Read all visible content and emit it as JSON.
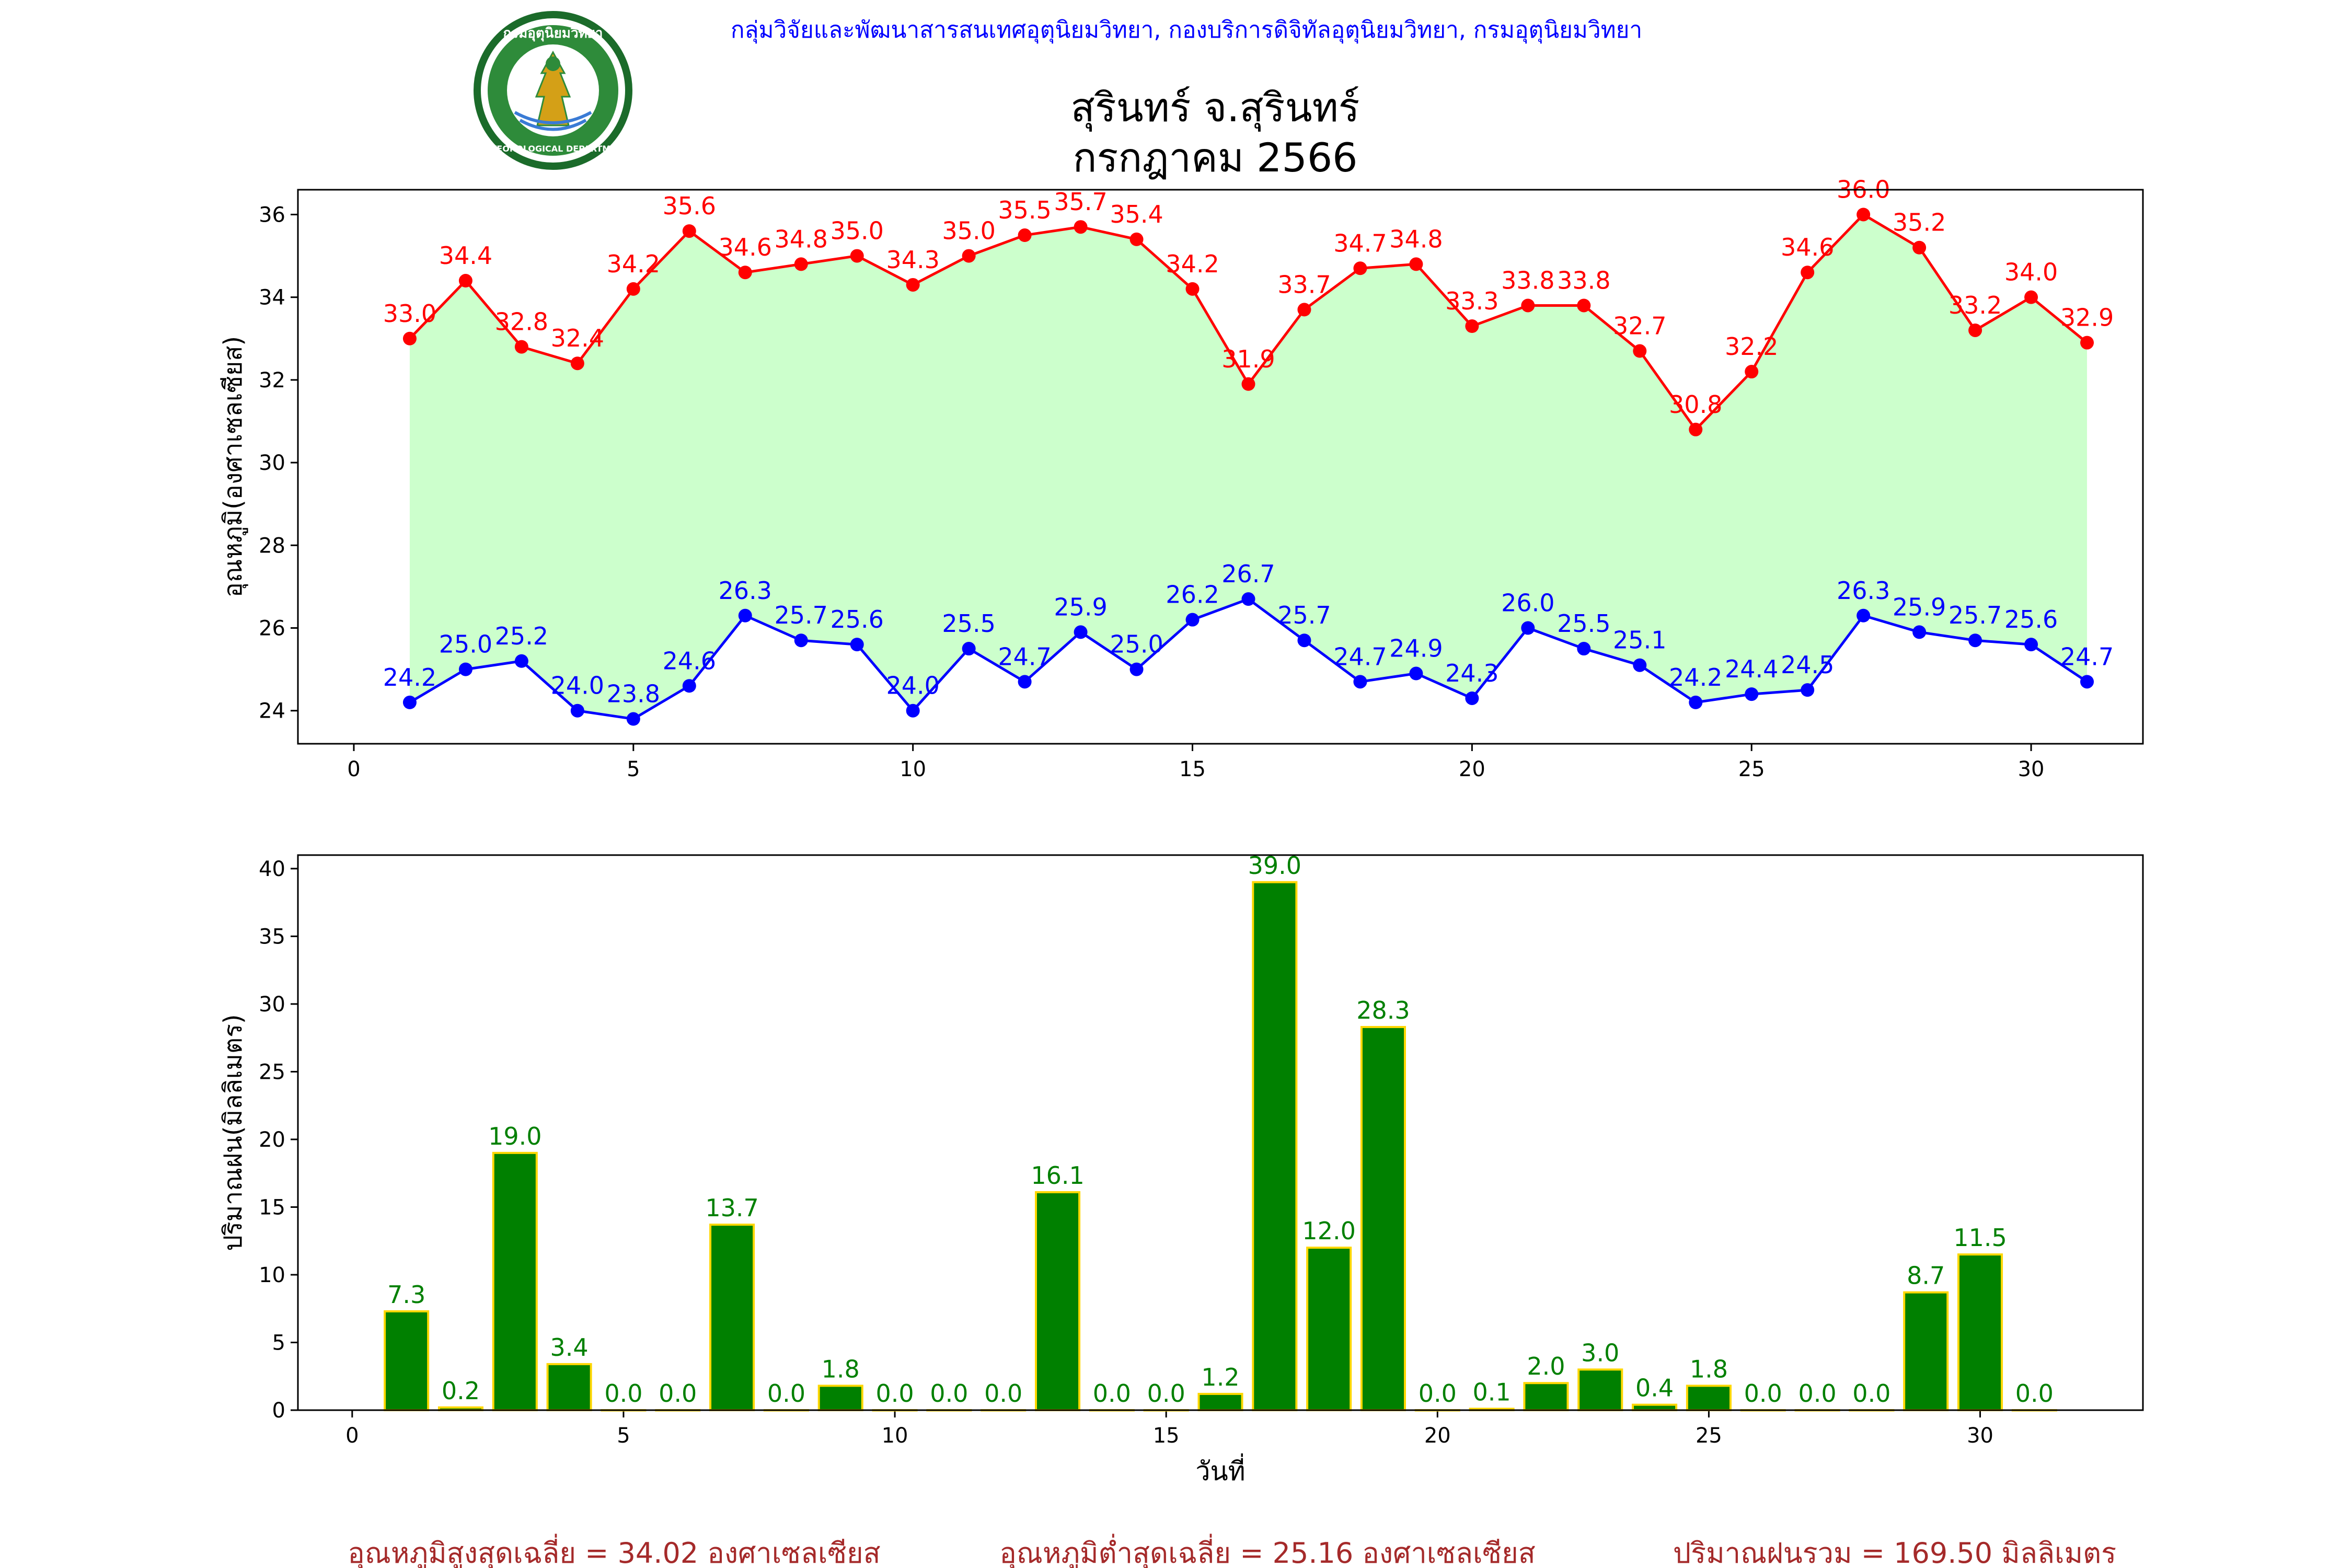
{
  "header": {
    "credit": "กลุ่มวิจัยและพัฒนาสารสนเทศอุตุนิยมวิทยา, กองบริการดิจิทัลอุตุนิยมวิทยา, กรมอุตุนิยมวิทยา",
    "logo_text_top": "กรมอุตุนิยมวิทยา",
    "logo_text_bottom": "METEOROLOGICAL DEPARTMENT",
    "title_line1": "สุรินทร์ จ.สุรินทร์",
    "title_line2": "กรกฎาคม 2566"
  },
  "colors": {
    "credit": "#0000ff",
    "max_line": "#ff0000",
    "min_line": "#0000ff",
    "fill": "#ccffcc",
    "bar_fill": "#008000",
    "bar_edge": "#ffd700",
    "bar_label": "#008000",
    "footer": "#a52a2a"
  },
  "chart_data": [
    {
      "type": "line",
      "ylabel": "อุณหภูมิ(องศาเซลเซียส)",
      "xlabel": "",
      "xlim": [
        -1,
        32
      ],
      "ylim": [
        23.2,
        36.6
      ],
      "xticks": [
        0,
        5,
        10,
        15,
        20,
        25,
        30
      ],
      "yticks": [
        24,
        26,
        28,
        30,
        32,
        34,
        36
      ],
      "x": [
        1,
        2,
        3,
        4,
        5,
        6,
        7,
        8,
        9,
        10,
        11,
        12,
        13,
        14,
        15,
        16,
        17,
        18,
        19,
        20,
        21,
        22,
        23,
        24,
        25,
        26,
        27,
        28,
        29,
        30,
        31
      ],
      "series": [
        {
          "key": "max",
          "values": [
            33.0,
            34.4,
            32.8,
            32.4,
            34.2,
            35.6,
            34.6,
            34.8,
            35.0,
            34.3,
            35.0,
            35.5,
            35.7,
            35.4,
            34.2,
            31.9,
            33.7,
            34.7,
            34.8,
            33.3,
            33.8,
            33.8,
            32.7,
            30.8,
            32.2,
            34.6,
            36.0,
            35.2,
            33.2,
            34.0,
            32.9
          ]
        },
        {
          "key": "min",
          "values": [
            24.2,
            25.0,
            25.2,
            24.0,
            23.8,
            24.6,
            26.3,
            25.7,
            25.6,
            24.0,
            25.5,
            24.7,
            25.9,
            25.0,
            26.2,
            26.7,
            25.7,
            24.7,
            24.9,
            24.3,
            26.0,
            25.5,
            25.1,
            24.2,
            24.4,
            24.5,
            26.3,
            25.9,
            25.7,
            25.6,
            24.7
          ]
        }
      ],
      "fill_between": true
    },
    {
      "type": "bar",
      "ylabel": "ปริมาณฝน(มิลลิเมตร)",
      "xlabel": "วันที่",
      "xlim": [
        -1,
        33
      ],
      "ylim": [
        0,
        41
      ],
      "xticks": [
        0,
        5,
        10,
        15,
        20,
        25,
        30
      ],
      "yticks": [
        0,
        5,
        10,
        15,
        20,
        25,
        30,
        35,
        40
      ],
      "x": [
        1,
        2,
        3,
        4,
        5,
        6,
        7,
        8,
        9,
        10,
        11,
        12,
        13,
        14,
        15,
        16,
        17,
        18,
        19,
        20,
        21,
        22,
        23,
        24,
        25,
        26,
        27,
        28,
        29,
        30,
        31
      ],
      "values": [
        7.3,
        0.2,
        19.0,
        3.4,
        0.0,
        0.0,
        13.7,
        0.0,
        1.8,
        0.0,
        0.0,
        0.0,
        16.1,
        0.0,
        0.0,
        1.2,
        39.0,
        12.0,
        28.3,
        0.0,
        0.1,
        2.0,
        3.0,
        0.4,
        1.8,
        0.0,
        0.0,
        0.0,
        8.7,
        11.5,
        0.0
      ]
    }
  ],
  "footer": {
    "avg_max": "อุณหภูมิสูงสุดเฉลี่ย = 34.02 องศาเซลเซียส",
    "avg_min": "อุณหภูมิต่ำสุดเฉลี่ย = 25.16 องศาเซลเซียส",
    "total_rain": "ปริมาณฝนรวม = 169.50 มิลลิเมตร"
  }
}
